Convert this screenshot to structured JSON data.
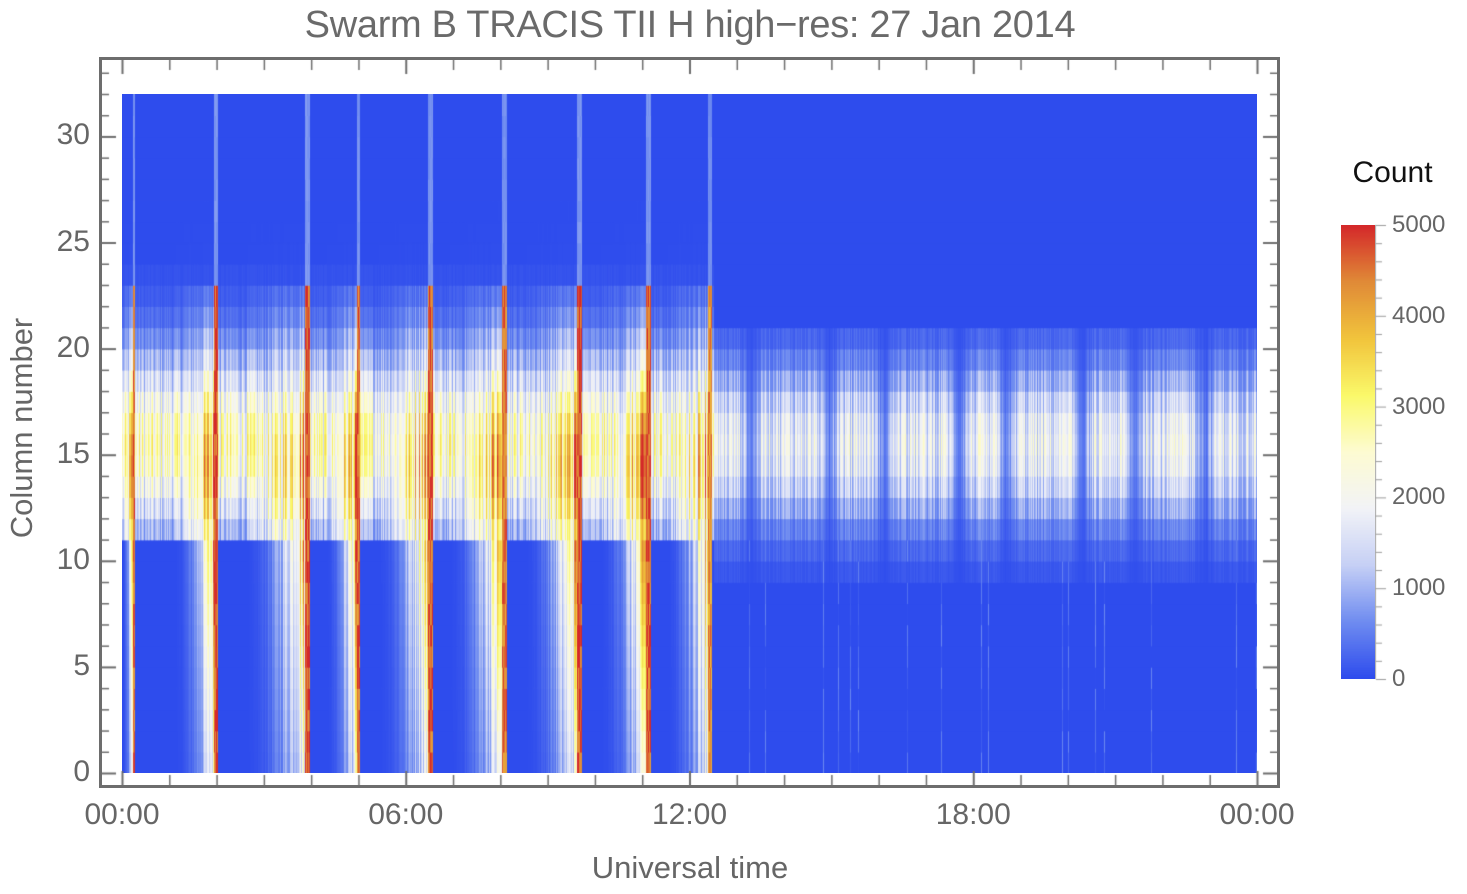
{
  "chart_data": {
    "type": "heatmap",
    "title": "Swarm B TRACIS TII H high−res: 27 Jan 2014",
    "xlabel": "Universal time",
    "ylabel": "Column number",
    "x_range_hours": [
      0,
      24
    ],
    "x_ticks": [
      "00:00",
      "06:00",
      "12:00",
      "18:00",
      "00:00"
    ],
    "y_range": [
      0,
      32
    ],
    "y_ticks": [
      0,
      5,
      10,
      15,
      20,
      25,
      30
    ],
    "colorbar": {
      "title": "Count",
      "range": [
        0,
        5000
      ],
      "ticks": [
        0,
        1000,
        2000,
        3000,
        4000,
        5000
      ],
      "colors": [
        "#2e4ced",
        "#6f8cf0",
        "#c6d0f5",
        "#f2f3f7",
        "#fdfbd2",
        "#faf96a",
        "#f1c43c",
        "#e08b37",
        "#d4282a"
      ]
    },
    "description": "Count per detector column (0-31) vs UT. 00:00-12:30: bright high-count passes (yellow/orange/red wedges, rising to column ~22), each ending in sharp red edge roughly every 1.55 h. 12:30-24:00: weaker band centered on columns 11-19 (white/light blue, counts ~1000-2500) with periodic gaps.",
    "passes_first_half": [
      {
        "start_h": 0.0,
        "end_h": 0.25,
        "peak": 4800
      },
      {
        "start_h": 1.1,
        "end_h": 2.0,
        "peak": 5000
      },
      {
        "start_h": 2.6,
        "end_h": 3.95,
        "peak": 5000
      },
      {
        "start_h": 4.3,
        "end_h": 5.0,
        "peak": 4800
      },
      {
        "start_h": 5.4,
        "end_h": 6.55,
        "peak": 4900
      },
      {
        "start_h": 6.9,
        "end_h": 8.1,
        "peak": 4700
      },
      {
        "start_h": 8.5,
        "end_h": 9.7,
        "peak": 5000
      },
      {
        "start_h": 10.1,
        "end_h": 11.15,
        "peak": 4900
      },
      {
        "start_h": 11.5,
        "end_h": 12.45,
        "peak": 4500
      }
    ],
    "band_second_half": {
      "rows": [
        11,
        19
      ],
      "typical": 1800,
      "gaps_h": [
        13.3,
        14.95,
        16.1,
        17.7,
        18.7,
        20.3,
        21.4,
        22.9
      ]
    }
  }
}
